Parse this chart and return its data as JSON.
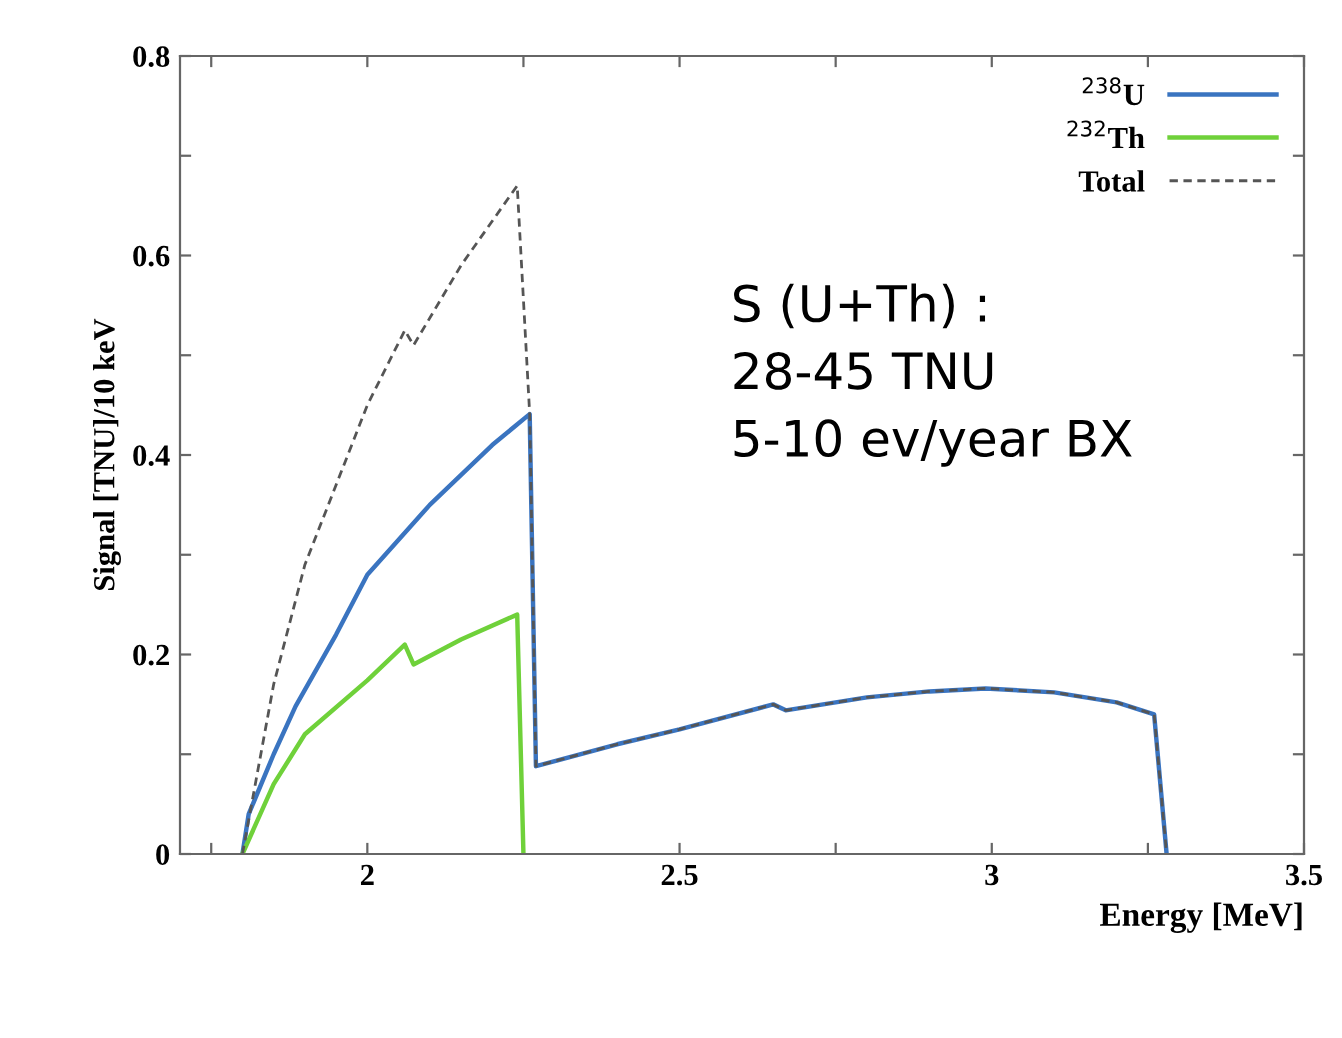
{
  "chart_data": {
    "type": "line",
    "xlabel": "Energy [MeV]",
    "ylabel": "Signal [TNU]/10 keV",
    "xlim": [
      1.7,
      3.5
    ],
    "ylim": [
      0,
      0.8
    ],
    "xticks": [
      {
        "value": 1.75,
        "label": null
      },
      2,
      {
        "value": 2.25,
        "label": null
      },
      2.5,
      {
        "value": 2.75,
        "label": null
      },
      3,
      {
        "value": 3.25,
        "label": null
      },
      3.5
    ],
    "yticks": [
      0,
      {
        "value": 0.1,
        "label": null
      },
      0.2,
      {
        "value": 0.3,
        "label": null
      },
      0.4,
      {
        "value": 0.5,
        "label": null
      },
      0.6,
      {
        "value": 0.7,
        "label": null
      },
      0.8
    ],
    "series": [
      {
        "name": "$^{238}$U",
        "color": "#3a74c0",
        "line_style": "solid",
        "x": [
          1.8,
          1.81,
          1.85,
          1.885,
          1.95,
          2.0,
          2.1,
          2.2,
          2.26,
          2.27,
          2.4,
          2.5,
          2.65,
          2.67,
          2.8,
          2.9,
          2.99,
          3.1,
          3.2,
          3.26,
          3.28
        ],
        "values": [
          0,
          0.04,
          0.1,
          0.148,
          0.22,
          0.28,
          0.35,
          0.41,
          0.441,
          0.088,
          0.11,
          0.125,
          0.15,
          0.144,
          0.157,
          0.163,
          0.166,
          0.162,
          0.152,
          0.14,
          0
        ]
      },
      {
        "name": "$^{232}$Th",
        "color": "#6fd13a",
        "line_style": "solid",
        "x": [
          1.8,
          1.85,
          1.9,
          2.0,
          2.06,
          2.074,
          2.15,
          2.24,
          2.25
        ],
        "values": [
          0,
          0.07,
          0.12,
          0.174,
          0.21,
          0.19,
          0.215,
          0.24,
          0
        ]
      },
      {
        "name": "Total",
        "color": "#555555",
        "line_style": "dashed",
        "x": [
          1.8,
          1.85,
          1.9,
          2.0,
          2.06,
          2.074,
          2.15,
          2.24,
          2.26,
          2.27,
          2.4,
          2.5,
          2.65,
          2.67,
          2.8,
          2.9,
          2.99,
          3.1,
          3.2,
          3.26,
          3.28
        ],
        "values": [
          0,
          0.17,
          0.29,
          0.45,
          0.525,
          0.51,
          0.59,
          0.67,
          0.441,
          0.088,
          0.11,
          0.125,
          0.15,
          0.144,
          0.157,
          0.163,
          0.166,
          0.162,
          0.152,
          0.14,
          0
        ]
      }
    ],
    "legend": "top right",
    "grid": false,
    "marker": "none",
    "annotations": [
      "S (U+Th) :\n28-45 TNU\n5-10 ev/year BX"
    ]
  }
}
